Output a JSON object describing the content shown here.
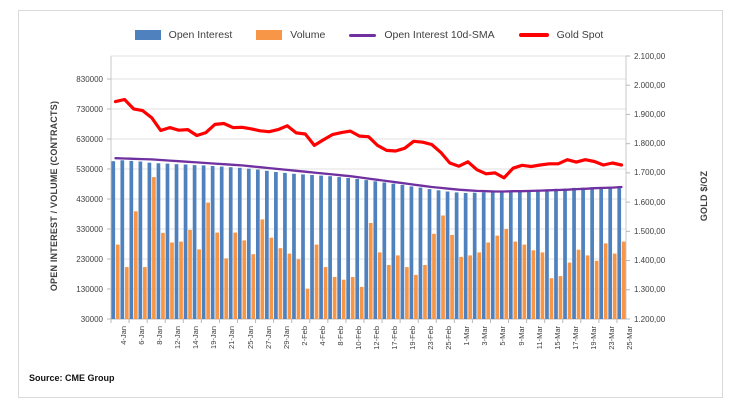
{
  "source": "Source: CME Group",
  "chart_data": {
    "type": "combo",
    "title": "",
    "legend_position": "top",
    "grid": true,
    "categories": [
      "4-Jan",
      "5-Jan",
      "6-Jan",
      "7-Jan",
      "8-Jan",
      "11-Jan",
      "12-Jan",
      "13-Jan",
      "14-Jan",
      "15-Jan",
      "19-Jan",
      "20-Jan",
      "21-Jan",
      "22-Jan",
      "25-Jan",
      "26-Jan",
      "27-Jan",
      "28-Jan",
      "29-Jan",
      "1-Feb",
      "2-Feb",
      "3-Feb",
      "4-Feb",
      "5-Feb",
      "8-Feb",
      "9-Feb",
      "10-Feb",
      "11-Feb",
      "12-Feb",
      "16-Feb",
      "17-Feb",
      "18-Feb",
      "19-Feb",
      "22-Feb",
      "23-Feb",
      "24-Feb",
      "25-Feb",
      "26-Feb",
      "1-Mar",
      "2-Mar",
      "3-Mar",
      "4-Mar",
      "5-Mar",
      "8-Mar",
      "9-Mar",
      "10-Mar",
      "11-Mar",
      "12-Mar",
      "15-Mar",
      "16-Mar",
      "17-Mar",
      "18-Mar",
      "19-Mar",
      "22-Mar",
      "23-Mar",
      "24-Mar",
      "25-Mar"
    ],
    "x_label_every": 2,
    "left_axis": {
      "title": "OPEN INTEREST / VOLUME (CONTRACTS)",
      "min": 30000,
      "tick_step": 100000,
      "ticks": [
        "830000",
        "730000",
        "630000",
        "530000",
        "430000",
        "330000",
        "230000",
        "130000",
        "30000"
      ]
    },
    "right_axis": {
      "title": "GOLD $/OZ",
      "min": 1200,
      "max": 2100,
      "ticks": [
        "2.100,00",
        "2.000,00",
        "1.900,00",
        "1.800,00",
        "1.700,00",
        "1.600,00",
        "1.500,00",
        "1.400,00",
        "1.300,00",
        "1.200,00"
      ]
    },
    "series": [
      {
        "name": "Open Interest",
        "kind": "bar",
        "axis": "left",
        "color": "#4E81BD",
        "values": [
          556000,
          559000,
          557000,
          555000,
          551000,
          549000,
          548000,
          546000,
          545000,
          543000,
          542000,
          540000,
          538000,
          536000,
          534000,
          531000,
          528000,
          524000,
          520000,
          517000,
          514000,
          512000,
          510000,
          508000,
          506000,
          503000,
          500000,
          497000,
          493000,
          489000,
          485000,
          481000,
          477000,
          472000,
          468000,
          463000,
          459000,
          455000,
          452000,
          450000,
          451000,
          452000,
          453000,
          455000,
          457000,
          458000,
          460000,
          461000,
          462000,
          464000,
          465000,
          467000,
          468000,
          469000,
          470000,
          471000,
          472000
        ]
      },
      {
        "name": "Volume",
        "kind": "bar",
        "axis": "left",
        "color": "#F79646",
        "values": [
          278000,
          203000,
          389000,
          203000,
          503000,
          317000,
          285000,
          288000,
          327000,
          262000,
          418000,
          318000,
          232000,
          318000,
          292000,
          246000,
          362000,
          301000,
          266000,
          248000,
          229000,
          131000,
          278000,
          203000,
          170000,
          161000,
          170000,
          137000,
          350000,
          252000,
          210000,
          242000,
          203000,
          177000,
          210000,
          314000,
          375000,
          310000,
          237000,
          242000,
          252000,
          285000,
          308000,
          330000,
          288000,
          278000,
          259000,
          252000,
          166000,
          173000,
          218000,
          261000,
          242000,
          224000,
          282000,
          248000,
          288000
        ]
      },
      {
        "name": "Open Interest 10d-SMA",
        "kind": "line",
        "axis": "left",
        "color": "#7030A0",
        "width": 2.3,
        "values": [
          566000,
          565000,
          564000,
          563000,
          562000,
          560000,
          558000,
          556000,
          554000,
          552000,
          550000,
          548000,
          546000,
          544000,
          542000,
          539000,
          536000,
          533000,
          530000,
          527000,
          524000,
          521000,
          518000,
          515000,
          512000,
          509000,
          506000,
          502000,
          498000,
          494000,
          490000,
          486000,
          482000,
          478000,
          474000,
          470000,
          467000,
          464000,
          461000,
          459000,
          457000,
          456000,
          455000,
          455000,
          456000,
          456000,
          457000,
          458000,
          459000,
          460000,
          461000,
          463000,
          464000,
          466000,
          467000,
          468000,
          470000
        ]
      },
      {
        "name": "Gold Spot",
        "kind": "line",
        "axis": "right",
        "color": "#FF0000",
        "width": 3.2,
        "values": [
          1944,
          1951,
          1919,
          1913,
          1889,
          1845,
          1855,
          1846,
          1848,
          1828,
          1838,
          1866,
          1869,
          1855,
          1856,
          1851,
          1844,
          1841,
          1848,
          1861,
          1837,
          1833,
          1794,
          1813,
          1831,
          1838,
          1843,
          1826,
          1824,
          1794,
          1777,
          1775,
          1784,
          1808,
          1805,
          1797,
          1770,
          1734,
          1723,
          1738,
          1711,
          1697,
          1700,
          1683,
          1716,
          1726,
          1722,
          1727,
          1731,
          1731,
          1745,
          1737,
          1745,
          1739,
          1727,
          1734,
          1727
        ]
      }
    ]
  }
}
